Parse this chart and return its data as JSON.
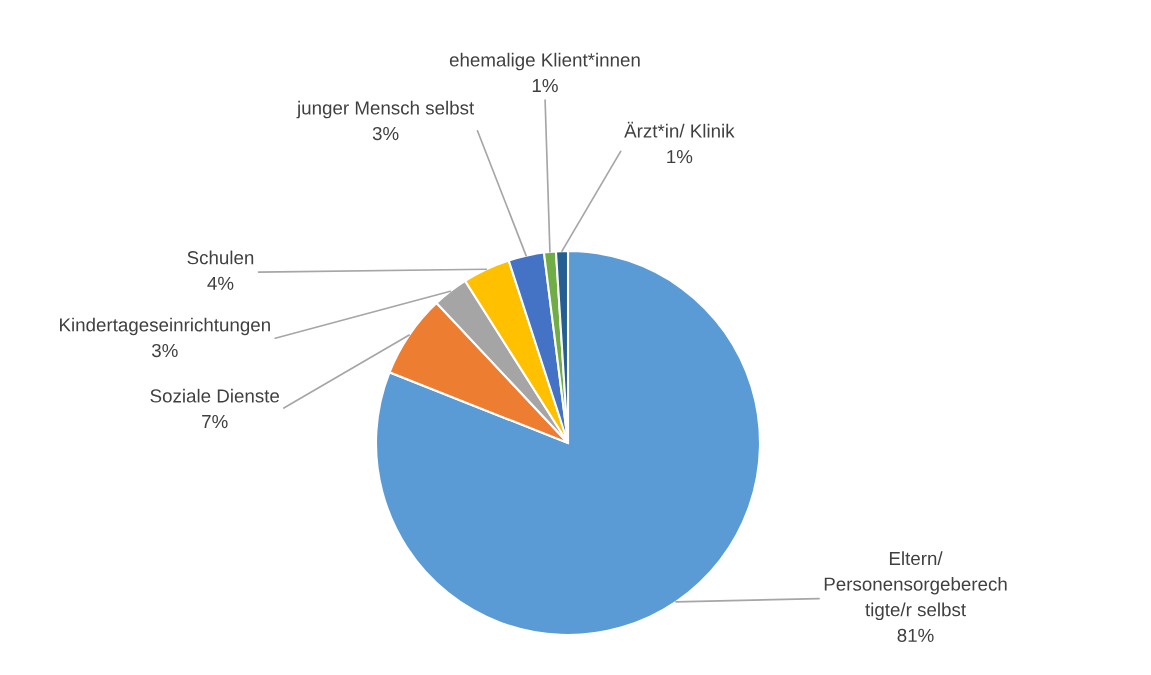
{
  "chart_data": {
    "type": "pie",
    "categories": [
      "Eltern/\nPersonensorgeberech\ntigte/r selbst",
      "Soziale Dienste",
      "Kindertageseinrichtungen",
      "Schulen",
      "junger Mensch selbst",
      "ehemalige Klient*innen",
      "Ärzt*in/ Klinik"
    ],
    "values": [
      81,
      7,
      3,
      4,
      3,
      1,
      1
    ],
    "colors": [
      "#5b9bd5",
      "#ed7d31",
      "#a5a5a5",
      "#ffc000",
      "#4472c4",
      "#70ad47",
      "#255e91"
    ],
    "value_labels": [
      "81%",
      "7%",
      "3%",
      "4%",
      "3%",
      "1%",
      "1%"
    ],
    "legend": false
  }
}
